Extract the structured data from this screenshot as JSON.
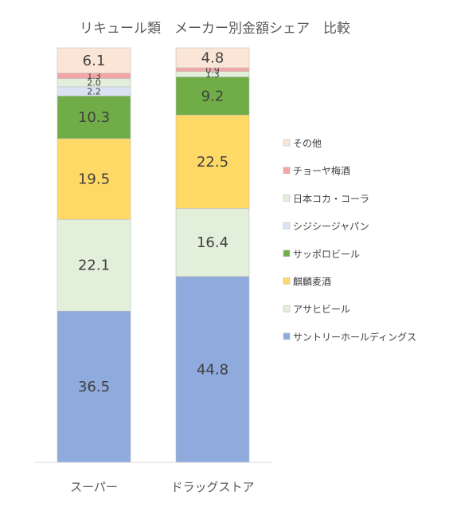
{
  "chart_data": {
    "type": "bar",
    "stacked": true,
    "title": "リキュール類　メーカー別金額シェア　比較",
    "categories": [
      "スーパー",
      "ドラッグストア"
    ],
    "series": [
      {
        "name": "サントリーホールディングス",
        "values": [
          36.5,
          44.8
        ],
        "labels": [
          "36.5",
          "44.8"
        ],
        "color": "#8FAADC"
      },
      {
        "name": "アサヒビール",
        "values": [
          22.1,
          16.4
        ],
        "labels": [
          "22.1",
          "16.4"
        ],
        "color": "#E2EFDA"
      },
      {
        "name": "麒麟麦酒",
        "values": [
          19.5,
          22.5
        ],
        "labels": [
          "19.5",
          "22.5"
        ],
        "color": "#FFD966"
      },
      {
        "name": "サッポロビール",
        "values": [
          10.3,
          9.2
        ],
        "labels": [
          "10.3",
          "9.2"
        ],
        "color": "#70AD47"
      },
      {
        "name": "シジシージャパン",
        "values": [
          2.2,
          0
        ],
        "labels": [
          "2.2",
          ""
        ],
        "color": "#DAE3F3"
      },
      {
        "name": "日本コカ・コーラ",
        "values": [
          2.0,
          1.3
        ],
        "labels": [
          "2.0",
          "1.3"
        ],
        "color": "#E2EFDA"
      },
      {
        "name": "チョーヤ梅酒",
        "values": [
          1.3,
          0.9
        ],
        "labels": [
          "1.3",
          "0.9"
        ],
        "color": "#F4A6A6"
      },
      {
        "name": "その他",
        "values": [
          6.1,
          4.8
        ],
        "labels": [
          "6.1",
          "4.8"
        ],
        "color": "#FBE5D6"
      }
    ],
    "ylim": [
      0,
      100
    ],
    "grid": false,
    "legend_position": "right"
  }
}
